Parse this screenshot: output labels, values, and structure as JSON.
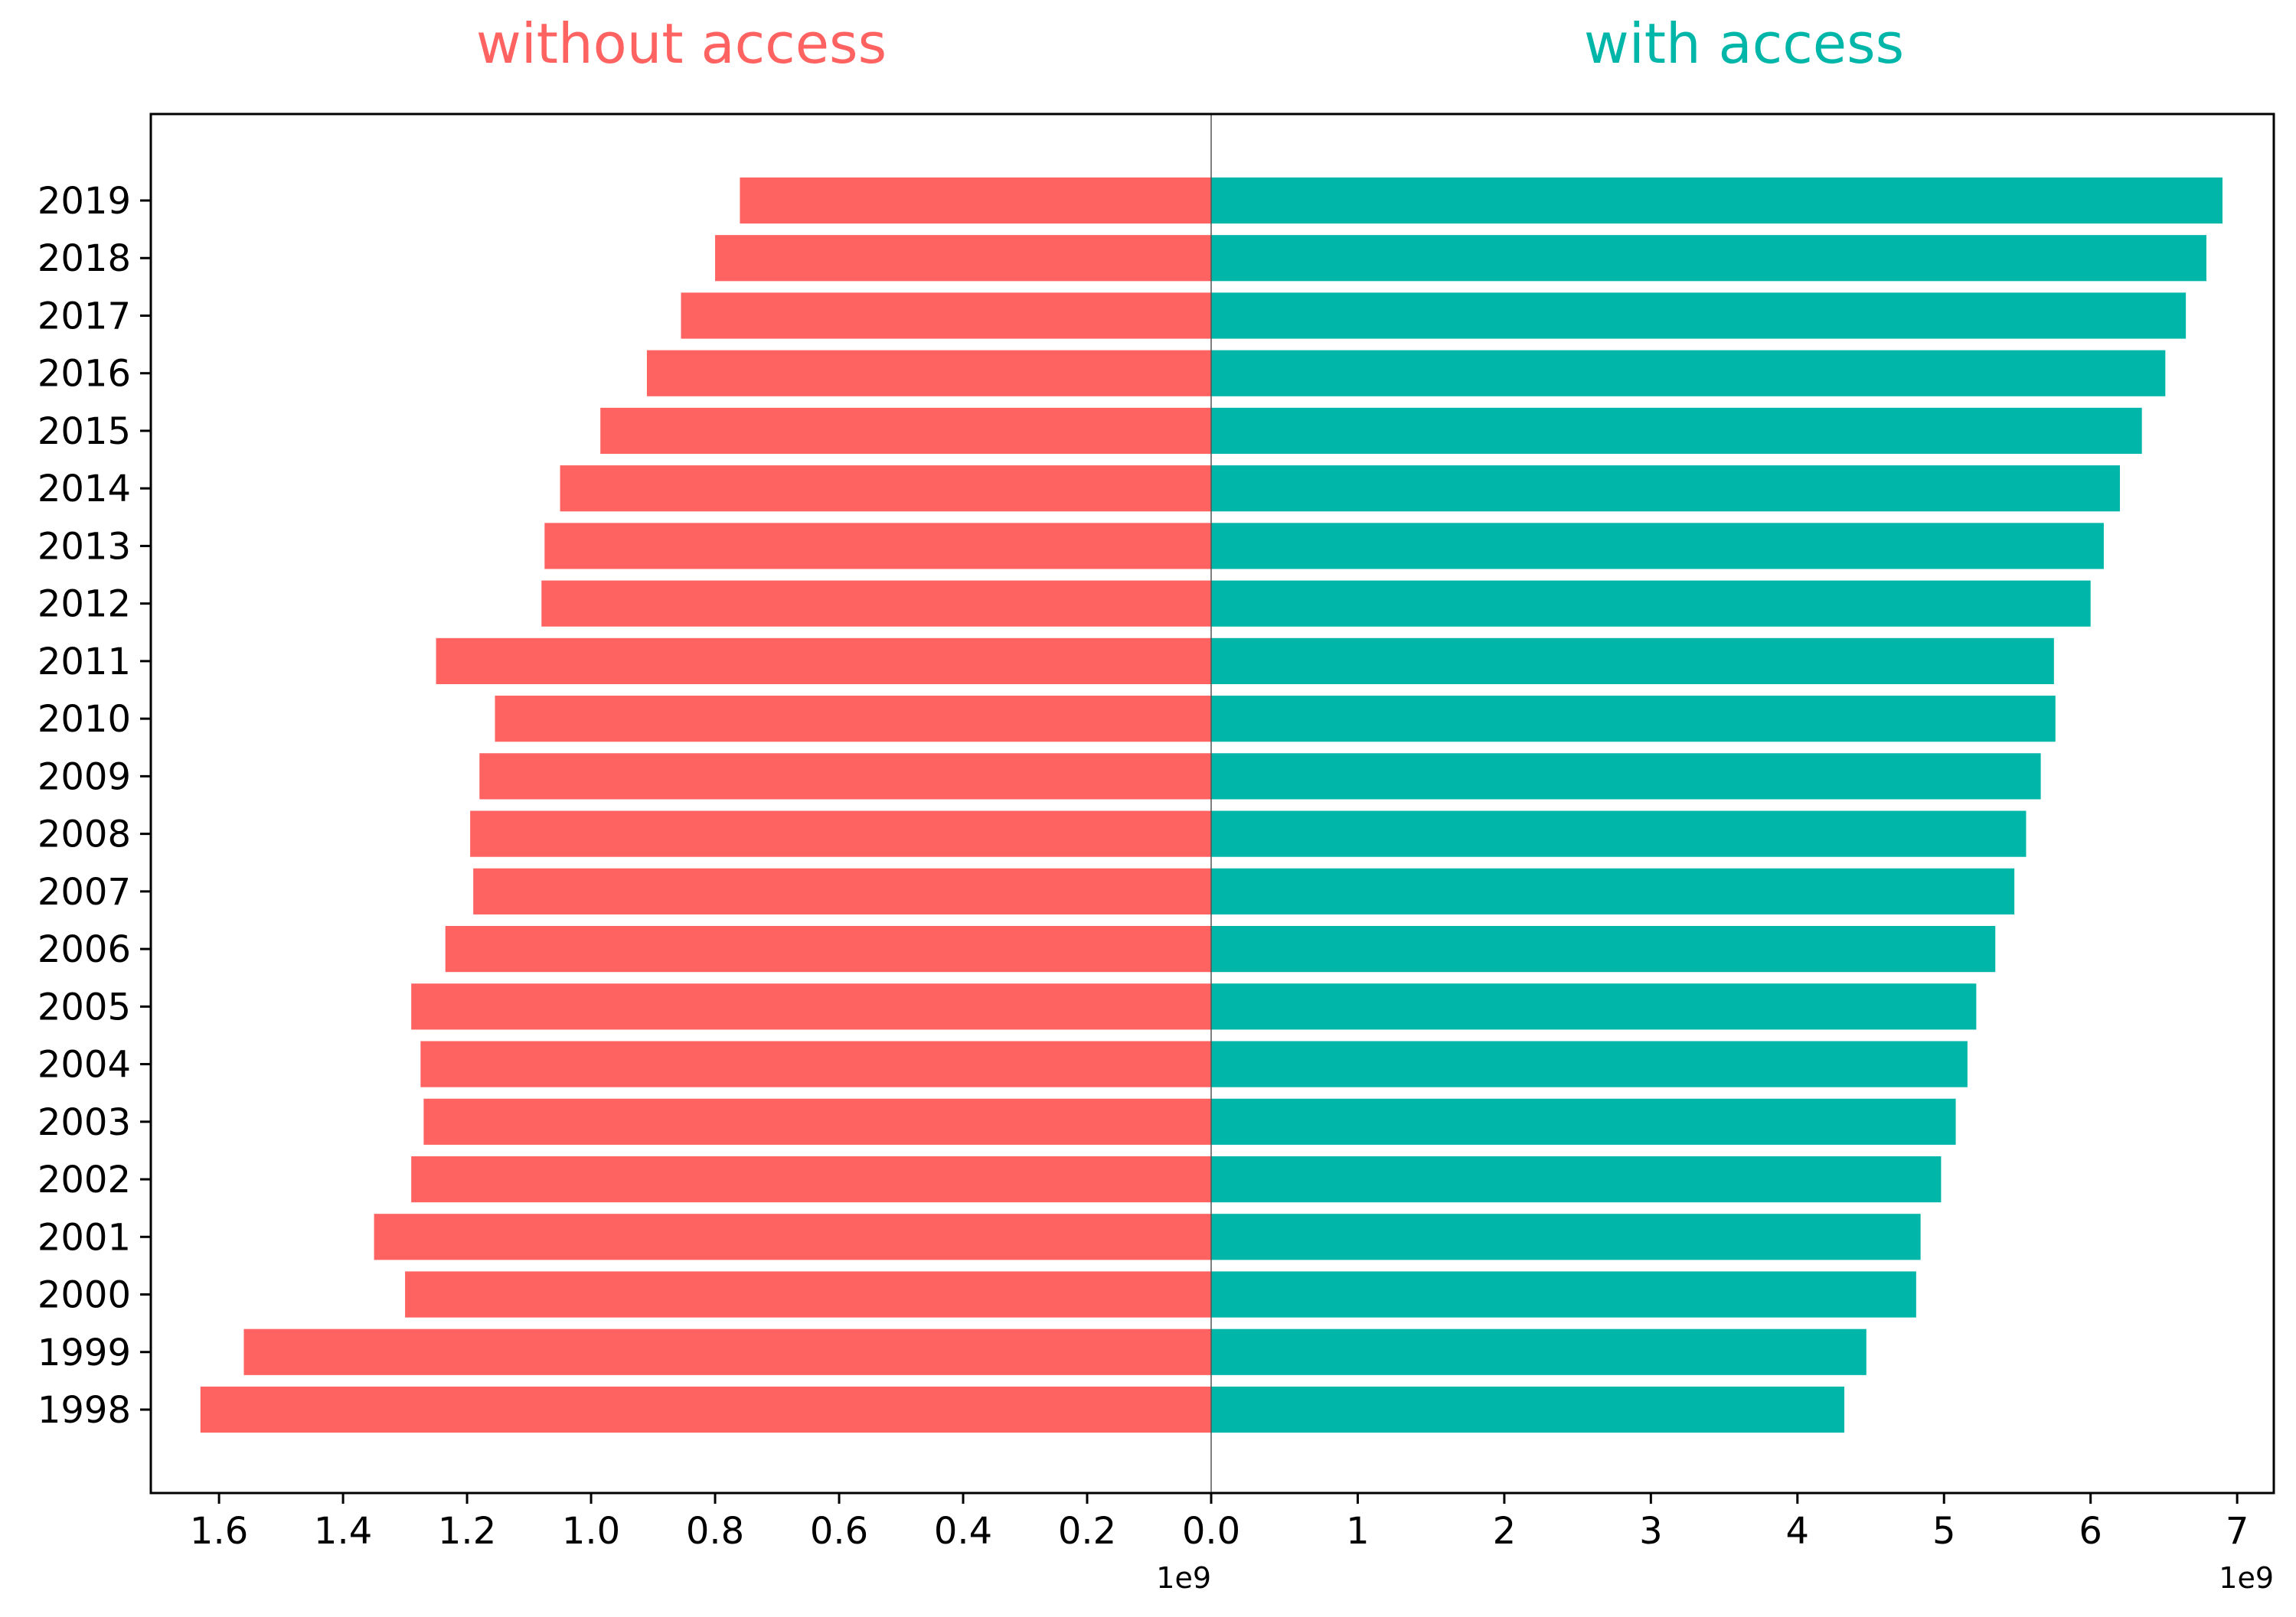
{
  "colors": {
    "without": "#ff6361",
    "with": "#00b6a9",
    "axis": "#000000",
    "divider": "#555555"
  },
  "chart_data": {
    "type": "bar",
    "orientation": "horizontal",
    "layout": "diverging",
    "categories": [
      "1998",
      "1999",
      "2000",
      "2001",
      "2002",
      "2003",
      "2004",
      "2005",
      "2006",
      "2007",
      "2008",
      "2009",
      "2010",
      "2011",
      "2012",
      "2013",
      "2014",
      "2015",
      "2016",
      "2017",
      "2018",
      "2019"
    ],
    "series": [
      {
        "name": "without access",
        "side": "left",
        "values": [
          1630000000.0,
          1560000000.0,
          1300000000.0,
          1350000000.0,
          1290000000.0,
          1270000000.0,
          1275000000.0,
          1290000000.0,
          1235000000.0,
          1190000000.0,
          1195000000.0,
          1180000000.0,
          1155000000.0,
          1250000000.0,
          1080000000.0,
          1075000000.0,
          1050000000.0,
          985000000.0,
          910000000.0,
          855000000.0,
          800000000.0,
          760000000.0
        ]
      },
      {
        "name": "with access",
        "side": "right",
        "values": [
          4320000000.0,
          4470000000.0,
          4810000000.0,
          4840000000.0,
          4980000000.0,
          5080000000.0,
          5160000000.0,
          5220000000.0,
          5350000000.0,
          5480000000.0,
          5560000000.0,
          5660000000.0,
          5760000000.0,
          5750000000.0,
          6000000000.0,
          6090000000.0,
          6200000000.0,
          6350000000.0,
          6510000000.0,
          6650000000.0,
          6790000000.0,
          6900000000.0
        ]
      }
    ],
    "left_axis": {
      "xlim": [
        0,
        1710000000.0
      ],
      "inverted": true,
      "ticks": [
        0,
        200000000.0,
        400000000.0,
        600000000.0,
        800000000.0,
        1000000000.0,
        1200000000.0,
        1400000000.0,
        1600000000.0
      ],
      "tick_labels": [
        "0.0",
        "0.2",
        "0.4",
        "0.6",
        "0.8",
        "1.0",
        "1.2",
        "1.4",
        "1.6"
      ],
      "offset_text": "1e9"
    },
    "right_axis": {
      "xlim": [
        0,
        7250000000.0
      ],
      "ticks": [
        1000000000.0,
        2000000000.0,
        3000000000.0,
        4000000000.0,
        5000000000.0,
        6000000000.0,
        7000000000.0
      ],
      "tick_labels": [
        "1",
        "2",
        "3",
        "4",
        "5",
        "6",
        "7"
      ],
      "offset_text": "1e9"
    },
    "grid": false,
    "legend": "none"
  }
}
